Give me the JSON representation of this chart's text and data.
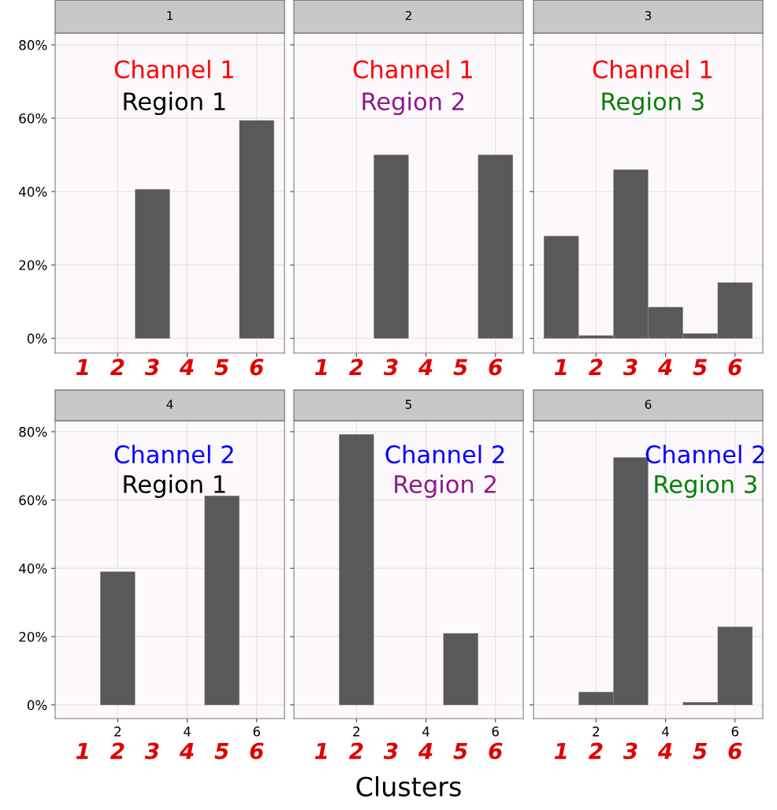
{
  "chart_data": [
    {
      "type": "bar",
      "title": "1",
      "x": [
        3,
        6
      ],
      "values": [
        40.6,
        59.4
      ],
      "color": "#595959",
      "xlim": [
        0.2,
        6.8
      ],
      "xticks": [
        {
          "value": 2,
          "label": null
        },
        {
          "value": 4,
          "label": null
        },
        {
          "value": 6,
          "label": null
        }
      ],
      "ylim": [
        -4,
        83.2
      ],
      "yticks": [
        {
          "value": 0,
          "label": "0%"
        },
        {
          "value": 20,
          "label": "20%"
        },
        {
          "value": 40,
          "label": "40%"
        },
        {
          "value": 60,
          "label": "60%"
        },
        {
          "value": 80,
          "label": "80%"
        }
      ],
      "tick_labels": "y",
      "grid": true,
      "annotations": [
        "Channel 1",
        "Region 1",
        "1",
        "2",
        "3",
        "4",
        "5",
        "6"
      ]
    },
    {
      "type": "bar",
      "title": "2",
      "x": [
        3,
        6
      ],
      "values": [
        50,
        50
      ],
      "color": "#595959",
      "xlim": [
        0.2,
        6.8
      ],
      "xticks": [
        {
          "value": 2,
          "label": null
        },
        {
          "value": 4,
          "label": null
        },
        {
          "value": 6,
          "label": null
        }
      ],
      "ylim": [
        -4,
        83.2
      ],
      "yticks": [
        {
          "value": 0,
          "label": null
        },
        {
          "value": 20,
          "label": null
        },
        {
          "value": 40,
          "label": null
        },
        {
          "value": 60,
          "label": null
        },
        {
          "value": 80,
          "label": null
        }
      ],
      "tick_labels": false,
      "grid": true,
      "annotations": [
        "Channel 1",
        "Region 2",
        "1",
        "2",
        "3",
        "4",
        "5",
        "6"
      ]
    },
    {
      "type": "bar",
      "title": "3",
      "x": [
        1,
        2,
        3,
        4,
        5,
        6
      ],
      "values": [
        27.9,
        0.8,
        46,
        8.5,
        1.3,
        15.2
      ],
      "color": "#595959",
      "xlim": [
        0.2,
        6.8
      ],
      "xticks": [
        {
          "value": 2,
          "label": null
        },
        {
          "value": 4,
          "label": null
        },
        {
          "value": 6,
          "label": null
        }
      ],
      "ylim": [
        -4,
        83.2
      ],
      "yticks": [
        {
          "value": 0,
          "label": null
        },
        {
          "value": 20,
          "label": null
        },
        {
          "value": 40,
          "label": null
        },
        {
          "value": 60,
          "label": null
        },
        {
          "value": 80,
          "label": null
        }
      ],
      "tick_labels": false,
      "grid": true,
      "annotations": [
        "Channel 1",
        "Region 3",
        "1",
        "2",
        "3",
        "4",
        "5",
        "6"
      ]
    },
    {
      "type": "bar",
      "title": "4",
      "x": [
        2,
        5
      ],
      "values": [
        39,
        61.2
      ],
      "color": "#595959",
      "xlim": [
        0.2,
        6.8
      ],
      "xticks": [
        2,
        4,
        6
      ],
      "ylim": [
        -4,
        83.2
      ],
      "yticks": [
        {
          "value": 0,
          "label": "0%"
        },
        {
          "value": 20,
          "label": "20%"
        },
        {
          "value": 40,
          "label": "40%"
        },
        {
          "value": 60,
          "label": "60%"
        },
        {
          "value": 80,
          "label": "80%"
        }
      ],
      "grid": true,
      "annotations": [
        "Channel 2",
        "Region 1",
        "1",
        "2",
        "3",
        "4",
        "5",
        "6"
      ]
    },
    {
      "type": "bar",
      "title": "5",
      "x": [
        2,
        5
      ],
      "values": [
        79.2,
        21
      ],
      "color": "#595959",
      "xlim": [
        0.2,
        6.8
      ],
      "xticks": [
        2,
        4,
        6
      ],
      "ylim": [
        -4,
        83.2
      ],
      "yticks": [
        {
          "value": 0,
          "label": null
        },
        {
          "value": 20,
          "label": null
        },
        {
          "value": 40,
          "label": null
        },
        {
          "value": 60,
          "label": null
        },
        {
          "value": 80,
          "label": null
        }
      ],
      "tick_labels": "x",
      "grid": true,
      "xlabel": "Clusters",
      "annotations": [
        "Channel 2",
        "Region 2",
        "1",
        "2",
        "3",
        "4",
        "5",
        "6"
      ]
    },
    {
      "type": "bar",
      "title": "6",
      "x": [
        2,
        3,
        5,
        6
      ],
      "values": [
        3.8,
        72.5,
        0.8,
        22.9
      ],
      "color": "#595959",
      "xlim": [
        0.2,
        6.8
      ],
      "xticks": [
        2,
        4,
        6
      ],
      "ylim": [
        -4,
        83.2
      ],
      "yticks": [
        {
          "value": 0,
          "label": null
        },
        {
          "value": 20,
          "label": null
        },
        {
          "value": 40,
          "label": null
        },
        {
          "value": 60,
          "label": null
        },
        {
          "value": 80,
          "label": null
        }
      ],
      "tick_labels": "x",
      "grid": true,
      "annotations": [
        "Channel 2",
        "Region 3",
        "1",
        "2",
        "3",
        "4",
        "5",
        "6"
      ]
    }
  ]
}
